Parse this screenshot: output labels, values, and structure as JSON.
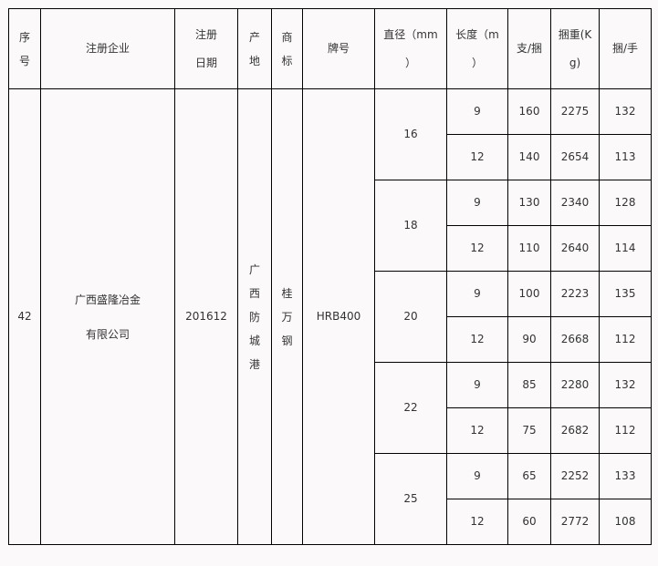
{
  "headers": [
    [
      "序",
      "号"
    ],
    [
      "注册企业"
    ],
    [
      "注册",
      "日期"
    ],
    [
      "产",
      "地"
    ],
    [
      "商",
      "标"
    ],
    [
      "牌号"
    ],
    [
      "直径（mm",
      "）"
    ],
    [
      "长度（m",
      "）"
    ],
    [
      "支/捆"
    ],
    [
      "捆重(K",
      "g)"
    ],
    [
      "捆/手"
    ]
  ],
  "entry": {
    "index": "42",
    "company": [
      "广西盛隆冶金",
      "有限公司"
    ],
    "date": "201612",
    "origin": [
      "广",
      "西",
      "防",
      "城",
      "港"
    ],
    "brand": [
      "桂",
      "万",
      "钢"
    ],
    "grade": "HRB400"
  },
  "diameters": [
    {
      "d": "16",
      "rows": [
        {
          "len": "9",
          "pcs": "160",
          "wt": "2275",
          "bundles": "132"
        },
        {
          "len": "12",
          "pcs": "140",
          "wt": "2654",
          "bundles": "113"
        }
      ]
    },
    {
      "d": "18",
      "rows": [
        {
          "len": "9",
          "pcs": "130",
          "wt": "2340",
          "bundles": "128"
        },
        {
          "len": "12",
          "pcs": "110",
          "wt": "2640",
          "bundles": "114"
        }
      ]
    },
    {
      "d": "20",
      "rows": [
        {
          "len": "9",
          "pcs": "100",
          "wt": "2223",
          "bundles": "135"
        },
        {
          "len": "12",
          "pcs": "90",
          "wt": "2668",
          "bundles": "112"
        }
      ]
    },
    {
      "d": "22",
      "rows": [
        {
          "len": "9",
          "pcs": "85",
          "wt": "2280",
          "bundles": "132"
        },
        {
          "len": "12",
          "pcs": "75",
          "wt": "2682",
          "bundles": "112"
        }
      ]
    },
    {
      "d": "25",
      "rows": [
        {
          "len": "9",
          "pcs": "65",
          "wt": "2252",
          "bundles": "133"
        },
        {
          "len": "12",
          "pcs": "60",
          "wt": "2772",
          "bundles": "108"
        }
      ]
    }
  ]
}
